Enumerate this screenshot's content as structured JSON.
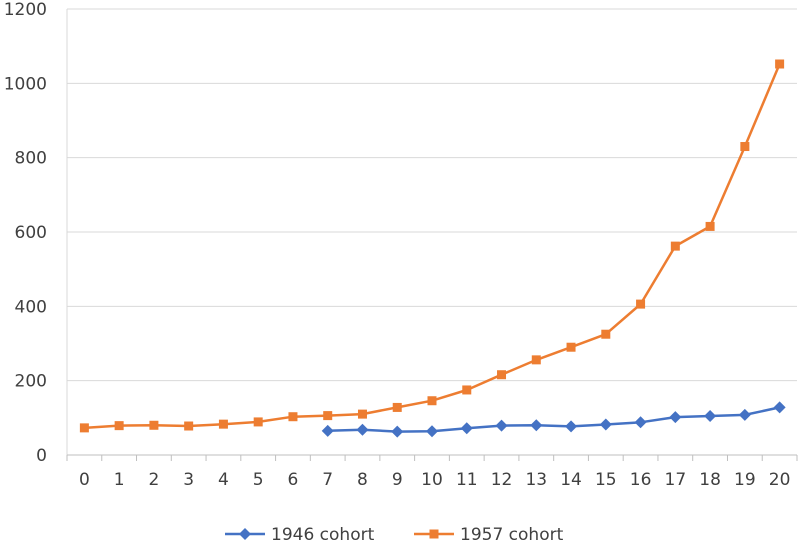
{
  "chart_data": {
    "type": "line",
    "title": "",
    "xlabel": "",
    "ylabel": "",
    "x": [
      0,
      1,
      2,
      3,
      4,
      5,
      6,
      7,
      8,
      9,
      10,
      11,
      12,
      13,
      14,
      15,
      16,
      17,
      18,
      19,
      20
    ],
    "ylim": [
      0,
      1200
    ],
    "yticks": [
      0,
      200,
      400,
      600,
      800,
      1000,
      1200
    ],
    "grid": true,
    "legend_position": "bottom",
    "series": [
      {
        "name": "1946 cohort",
        "color": "#4472C4",
        "marker": "diamond",
        "values": [
          null,
          null,
          null,
          null,
          null,
          null,
          null,
          65,
          68,
          63,
          64,
          72,
          79,
          80,
          77,
          82,
          88,
          102,
          105,
          108,
          128
        ]
      },
      {
        "name": "1957 cohort",
        "color": "#ED7D31",
        "marker": "square",
        "values": [
          73,
          79,
          80,
          78,
          83,
          89,
          103,
          106,
          110,
          128,
          146,
          175,
          216,
          256,
          290,
          325,
          406,
          562,
          615,
          830,
          1052
        ]
      }
    ]
  }
}
